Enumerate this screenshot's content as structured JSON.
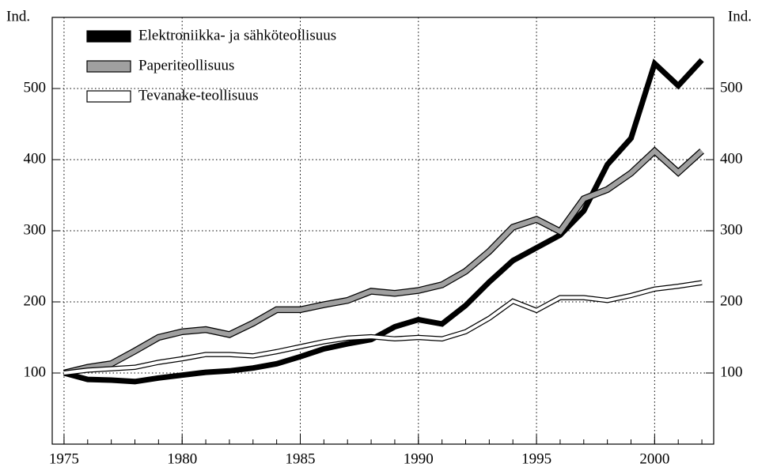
{
  "chart_data": {
    "type": "line",
    "y_label": "Ind.",
    "y2_label": "Ind.",
    "x": [
      1975,
      1976,
      1977,
      1978,
      1979,
      1980,
      1981,
      1982,
      1983,
      1984,
      1985,
      1986,
      1987,
      1988,
      1989,
      1990,
      1991,
      1992,
      1993,
      1994,
      1995,
      1996,
      1997,
      1998,
      1999,
      2000,
      2001,
      2002
    ],
    "series": [
      {
        "name": "Elektroniikka- ja sähköteollisuus",
        "color": "#000000",
        "values": [
          100,
          91,
          90,
          88,
          93,
          97,
          101,
          103,
          107,
          113,
          123,
          134,
          141,
          147,
          165,
          175,
          169,
          195,
          228,
          258,
          276,
          294,
          328,
          393,
          430,
          535,
          504,
          540
        ]
      },
      {
        "name": "Paperiteollisuus",
        "color": "#a0a0a0",
        "values": [
          100,
          108,
          113,
          131,
          150,
          158,
          161,
          154,
          170,
          189,
          189,
          196,
          202,
          215,
          212,
          216,
          224,
          243,
          271,
          305,
          316,
          299,
          345,
          358,
          381,
          412,
          382,
          412
        ]
      },
      {
        "name": "Tevanake-teollisuus",
        "color": "#ffffff",
        "values": [
          100,
          104,
          106,
          108,
          115,
          120,
          126,
          126,
          124,
          130,
          137,
          144,
          149,
          151,
          148,
          150,
          148,
          158,
          177,
          201,
          188,
          206,
          206,
          202,
          209,
          218,
          222,
          227
        ]
      }
    ],
    "xlim": [
      1974.5,
      2002.5
    ],
    "xticks": [
      1975,
      1980,
      1985,
      1990,
      1995,
      2000
    ],
    "ylim": [
      0,
      600
    ],
    "yticks": [
      100,
      200,
      300,
      400,
      500
    ],
    "y2lim": [
      0,
      600
    ],
    "y2ticks": [
      100,
      200,
      300,
      400,
      500
    ],
    "grid": true,
    "legend": "upper left"
  }
}
